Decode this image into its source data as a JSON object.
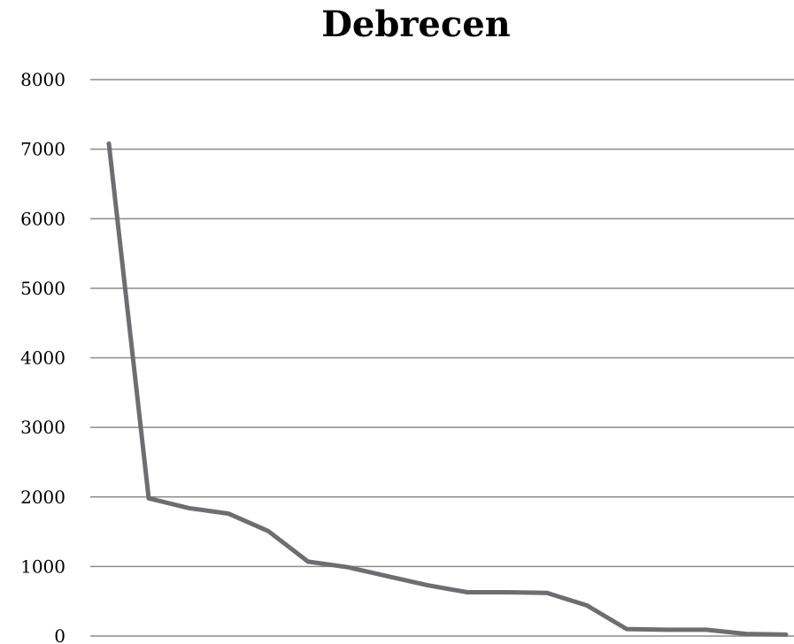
{
  "chart_data": {
    "type": "line",
    "title": "Debrecen",
    "xlabel": "",
    "ylabel": "",
    "ylim": [
      0,
      8000
    ],
    "y_ticks": [
      "0",
      "1000",
      "2000",
      "3000",
      "4000",
      "5000",
      "6000",
      "7000",
      "8000"
    ],
    "grid": true,
    "legend": "none",
    "series": [
      {
        "values": [
          7080,
          1980,
          1840,
          1760,
          1510,
          1070,
          990,
          860,
          730,
          630,
          630,
          620,
          440,
          100,
          90,
          90,
          30,
          20
        ]
      }
    ],
    "colors": {
      "line": "#6d6e71",
      "grid": "#8c8c8c",
      "text": "#000000"
    }
  }
}
